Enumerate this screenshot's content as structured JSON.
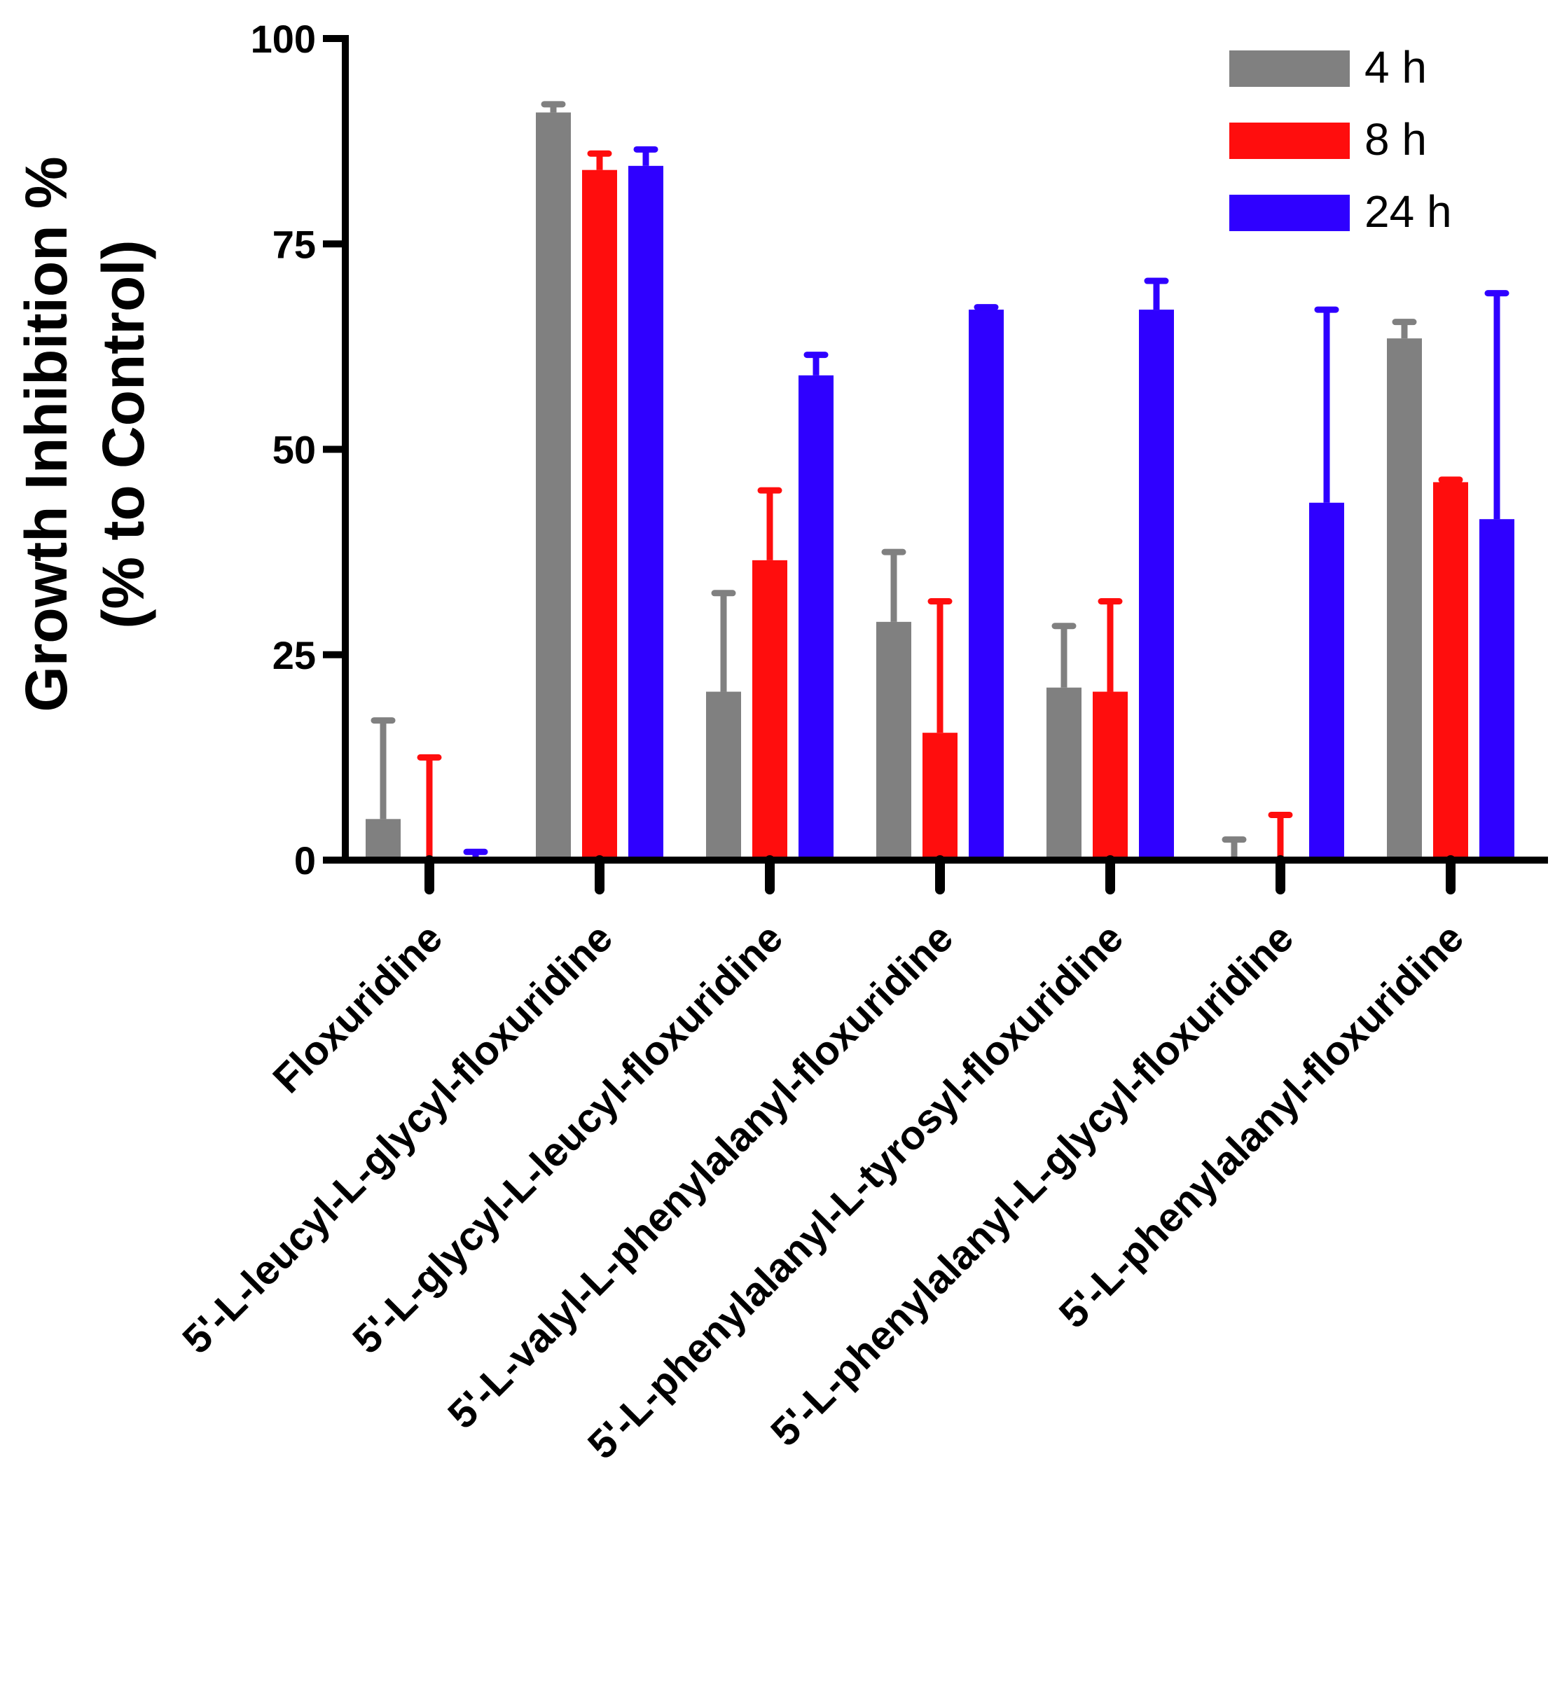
{
  "chart_data": {
    "type": "bar",
    "title": "",
    "ylabel": "Growth Inhibition %",
    "ylabel_line2": "(% to Control)",
    "xlabel": "",
    "ylim": [
      0,
      100
    ],
    "yticks": [
      0,
      25,
      50,
      75,
      100
    ],
    "ytick_labels": [
      "0",
      "25",
      "50",
      "75",
      "100"
    ],
    "categories": [
      "Floxuridine",
      "5'-L-leucyl-L-glycyl-floxuridine",
      "5'-L-glycyl-L-leucyl-floxuridine",
      "5'-L-valyl-L-phenylalanyl-floxuridine",
      "5'-L-phenylalanyl-L-tyrosyl-floxuridine",
      "5'-L-phenylalanyl-L-glycyl-floxuridine",
      "5'-L-phenylalanyl-floxuridine"
    ],
    "series": [
      {
        "name": "4 h",
        "color": "#808080",
        "values": [
          5,
          91,
          20.5,
          29,
          21,
          0,
          63.5
        ],
        "errors": [
          12,
          1,
          12,
          8.5,
          7.5,
          2.5,
          2
        ]
      },
      {
        "name": "8 h",
        "color": "#ff0d0d",
        "values": [
          0,
          84,
          36.5,
          15.5,
          20.5,
          0,
          46
        ],
        "errors": [
          12.5,
          2,
          8.5,
          16,
          11,
          5.5,
          0.3
        ]
      },
      {
        "name": "24 h",
        "color": "#2f00ff",
        "values": [
          0,
          84.5,
          59,
          67,
          67,
          43.5,
          41.5
        ],
        "errors": [
          1,
          2,
          2.5,
          0.3,
          3.5,
          23.5,
          27.5
        ]
      }
    ],
    "legend": {
      "position": "top-right"
    },
    "grid": false
  }
}
